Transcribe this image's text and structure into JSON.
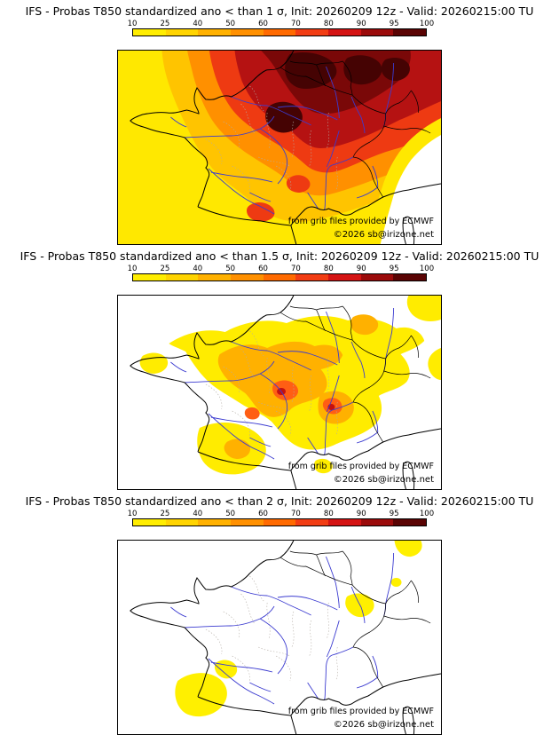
{
  "page": {
    "background": "#ffffff"
  },
  "colorbar": {
    "ticks": [
      "10",
      "25",
      "40",
      "50",
      "60",
      "70",
      "80",
      "90",
      "95",
      "100"
    ],
    "colors": [
      "#ffed00",
      "#ffd400",
      "#ffb100",
      "#ff9000",
      "#ff6a00",
      "#f23d14",
      "#d41414",
      "#9b0b0b",
      "#5a0404"
    ]
  },
  "panels": [
    {
      "id": "1sigma",
      "title": "IFS - Probas T850  standardized ano < than 1 σ, Init: 20260209 12z - Valid: 20260215:00 TU"
    },
    {
      "id": "1.5sigma",
      "title": "IFS - Probas T850  standardized ano < than 1.5 σ, Init: 20260209 12z - Valid: 20260215:00 TU"
    },
    {
      "id": "2sigma",
      "title": "IFS - Probas T850  standardized ano < than 2 σ, Init: 20260209 12z - Valid: 20260215:00 TU"
    }
  ],
  "credits": {
    "line1": "from grib files provided by ECMWF",
    "line2": "©2026 sb@irizone.net"
  },
  "chart_data": {
    "type": "heatmap",
    "title": "IFS - Probas T850 standardized anomaly probability maps over France",
    "init": "20260209 12z",
    "valid": "20260215:00 TU",
    "region": "France",
    "probability_scale_percent": [
      10,
      25,
      40,
      50,
      60,
      70,
      80,
      90,
      95,
      100
    ],
    "scale_colors": [
      "#ffed00",
      "#ffd400",
      "#ffb100",
      "#ff9000",
      "#ff6a00",
      "#f23d14",
      "#d41414",
      "#9b0b0b",
      "#5a0404"
    ],
    "panels": [
      {
        "threshold": "< 1 σ",
        "summary": "Probabilities 80-100% over northern and northeastern France (darkest over the northeast), decreasing to 10-40% along the far west, southwest and Mediterranean edge; white (below 10%) only in the far southeast corner."
      },
      {
        "threshold": "< 1.5 σ",
        "summary": "Patchy 10-60% band from Normandy/Brittany across central France to the southern Alps, local maxima 60-90% near the Massif Central and Rhône-Alpes; separate 10-40% patch over the Pyrenees; elsewhere below 10%."
      },
      {
        "threshold": "< 2 σ",
        "summary": "Almost everywhere below 10%; isolated 10-25% patches in the southwest near the Pyrenees, one near the Alps, and small spots at the top-right edge."
      }
    ]
  }
}
